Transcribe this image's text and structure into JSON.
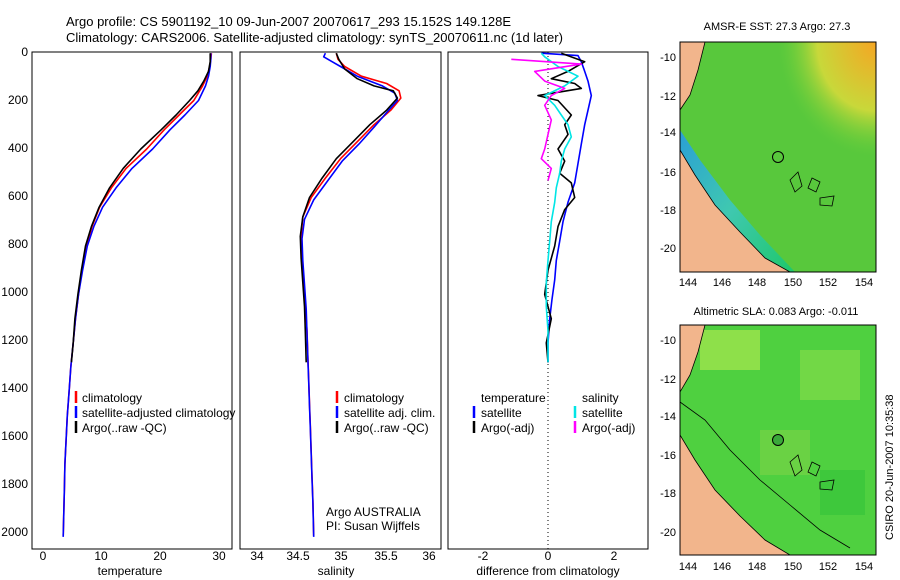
{
  "header": {
    "line1": "Argo profile: CS 5901192_10 09-Jun-2007 20070617_293 15.152S 149.128E",
    "line2": "Climatology: CARS2006. Satellite-adjusted climatology: synTS_20070611.nc (1d later)"
  },
  "side_text": "CSIRO 20-Jun-2007 10:35:38",
  "colors": {
    "climatology": "#ff0000",
    "satellite": "#0000ff",
    "argo": "#000000",
    "sal_satellite": "#00e5e5",
    "sal_argo": "#ff00ff",
    "land": "#f2b58c"
  },
  "maps": [
    {
      "title": "AMSR-E SST: 27.3 Argo: 27.3",
      "xticks": [
        "144",
        "146",
        "148",
        "150",
        "152",
        "154"
      ],
      "yticks": [
        "-10",
        "-12",
        "-14",
        "-16",
        "-18",
        "-20"
      ]
    },
    {
      "title": "Altimetric SLA: 0.083 Argo: -0.011",
      "xticks": [
        "144",
        "146",
        "148",
        "150",
        "152",
        "154"
      ],
      "yticks": [
        "-10",
        "-12",
        "-14",
        "-16",
        "-18",
        "-20"
      ]
    }
  ],
  "chart_data": [
    {
      "type": "line",
      "xlabel": "temperature",
      "ylabel": "",
      "xlim": [
        -3,
        31
      ],
      "ylim": [
        2050,
        0
      ],
      "xticks": [
        0,
        10,
        20,
        30
      ],
      "yticks": [
        0,
        200,
        400,
        600,
        800,
        1000,
        1200,
        1400,
        1600,
        1800,
        2000
      ],
      "legend": [
        "climatology",
        "satellite-adjusted climatology",
        "Argo(..raw -QC)"
      ],
      "series": [
        {
          "name": "climatology",
          "color": "#ff0000",
          "points": [
            [
              27.5,
              5
            ],
            [
              27.4,
              30
            ],
            [
              27.2,
              60
            ],
            [
              26.8,
              100
            ],
            [
              26.0,
              140
            ],
            [
              24.5,
              200
            ],
            [
              22.0,
              260
            ],
            [
              19.5,
              320
            ],
            [
              16.5,
              400
            ],
            [
              13.0,
              480
            ],
            [
              10.5,
              560
            ],
            [
              8.5,
              640
            ],
            [
              7.2,
              720
            ],
            [
              6.3,
              800
            ],
            [
              5.5,
              900
            ],
            [
              4.9,
              1000
            ],
            [
              4.4,
              1100
            ],
            [
              4.0,
              1200
            ],
            [
              3.6,
              1300
            ],
            [
              3.3,
              1400
            ],
            [
              3.0,
              1500
            ],
            [
              2.8,
              1600
            ],
            [
              2.6,
              1700
            ],
            [
              2.5,
              1800
            ],
            [
              2.4,
              1900
            ],
            [
              2.3,
              1995
            ]
          ]
        },
        {
          "name": "satellite-adjusted climatology",
          "color": "#0000ff",
          "points": [
            [
              27.4,
              5
            ],
            [
              27.4,
              30
            ],
            [
              27.3,
              60
            ],
            [
              27.0,
              100
            ],
            [
              26.5,
              140
            ],
            [
              25.3,
              200
            ],
            [
              23.0,
              260
            ],
            [
              20.5,
              320
            ],
            [
              17.5,
              400
            ],
            [
              14.0,
              480
            ],
            [
              11.3,
              560
            ],
            [
              9.0,
              640
            ],
            [
              7.5,
              720
            ],
            [
              6.4,
              800
            ],
            [
              5.6,
              900
            ],
            [
              4.9,
              1000
            ],
            [
              4.4,
              1100
            ],
            [
              4.0,
              1200
            ],
            [
              3.6,
              1300
            ],
            [
              3.3,
              1400
            ],
            [
              3.0,
              1500
            ],
            [
              2.8,
              1600
            ],
            [
              2.6,
              1700
            ],
            [
              2.5,
              1800
            ],
            [
              2.4,
              1900
            ],
            [
              2.3,
              2000
            ]
          ]
        },
        {
          "name": "Argo(..raw -QC)",
          "color": "#000000",
          "points": [
            [
              27.3,
              5
            ],
            [
              27.3,
              40
            ],
            [
              27.0,
              80
            ],
            [
              26.2,
              120
            ],
            [
              25.2,
              160
            ],
            [
              23.8,
              200
            ],
            [
              21.5,
              260
            ],
            [
              19.0,
              320
            ],
            [
              15.5,
              400
            ],
            [
              12.5,
              480
            ],
            [
              10.2,
              560
            ],
            [
              8.4,
              640
            ],
            [
              7.1,
              720
            ],
            [
              6.1,
              800
            ],
            [
              5.4,
              900
            ],
            [
              4.8,
              1000
            ],
            [
              4.3,
              1100
            ],
            [
              4.0,
              1200
            ],
            [
              3.7,
              1280
            ]
          ]
        }
      ]
    },
    {
      "type": "line",
      "xlabel": "salinity",
      "ylabel": "",
      "xlim": [
        33.8,
        36.2
      ],
      "ylim": [
        2050,
        0
      ],
      "xticks": [
        34,
        34.5,
        35,
        35.5,
        36
      ],
      "yticks": [
        0,
        200,
        400,
        600,
        800,
        1000,
        1200,
        1400,
        1600,
        1800,
        2000
      ],
      "legend": [
        "climatology",
        "satellite adj. clim.",
        "Argo(..raw -QC)"
      ],
      "annotation": [
        "Argo AUSTRALIA",
        "PI: Susan Wijffels"
      ],
      "series": [
        {
          "name": "climatology",
          "color": "#ff0000",
          "points": [
            [
              34.95,
              5
            ],
            [
              34.97,
              30
            ],
            [
              35.05,
              60
            ],
            [
              35.25,
              100
            ],
            [
              35.55,
              130
            ],
            [
              35.7,
              160
            ],
            [
              35.72,
              190
            ],
            [
              35.6,
              240
            ],
            [
              35.4,
              300
            ],
            [
              35.2,
              370
            ],
            [
              35.0,
              440
            ],
            [
              34.82,
              520
            ],
            [
              34.65,
              600
            ],
            [
              34.55,
              680
            ],
            [
              34.53,
              760
            ],
            [
              34.54,
              850
            ],
            [
              34.56,
              950
            ],
            [
              34.58,
              1050
            ],
            [
              34.6,
              1150
            ],
            [
              34.61,
              1250
            ],
            [
              34.62,
              1350
            ],
            [
              34.63,
              1450
            ],
            [
              34.64,
              1550
            ],
            [
              34.65,
              1650
            ],
            [
              34.66,
              1750
            ],
            [
              34.67,
              1850
            ],
            [
              34.68,
              1995
            ]
          ]
        },
        {
          "name": "satellite adj. clim.",
          "color": "#0000ff",
          "points": [
            [
              34.82,
              5
            ],
            [
              34.8,
              20
            ],
            [
              34.9,
              40
            ],
            [
              35.0,
              60
            ],
            [
              35.2,
              100
            ],
            [
              35.5,
              140
            ],
            [
              35.65,
              170
            ],
            [
              35.68,
              200
            ],
            [
              35.55,
              250
            ],
            [
              35.4,
              310
            ],
            [
              35.22,
              380
            ],
            [
              35.02,
              450
            ],
            [
              34.85,
              530
            ],
            [
              34.68,
              610
            ],
            [
              34.57,
              690
            ],
            [
              34.54,
              770
            ],
            [
              34.55,
              860
            ],
            [
              34.57,
              960
            ],
            [
              34.59,
              1060
            ],
            [
              34.6,
              1160
            ],
            [
              34.61,
              1260
            ],
            [
              34.62,
              1360
            ],
            [
              34.63,
              1460
            ],
            [
              34.64,
              1560
            ],
            [
              34.65,
              1660
            ],
            [
              34.66,
              1760
            ],
            [
              34.67,
              1860
            ],
            [
              34.68,
              2000
            ]
          ]
        },
        {
          "name": "Argo(..raw -QC)",
          "color": "#000000",
          "points": [
            [
              34.95,
              5
            ],
            [
              34.98,
              30
            ],
            [
              35.05,
              70
            ],
            [
              35.2,
              110
            ],
            [
              35.4,
              140
            ],
            [
              35.63,
              160
            ],
            [
              35.68,
              190
            ],
            [
              35.55,
              240
            ],
            [
              35.35,
              300
            ],
            [
              35.15,
              370
            ],
            [
              34.95,
              440
            ],
            [
              34.78,
              520
            ],
            [
              34.63,
              600
            ],
            [
              34.55,
              680
            ],
            [
              34.52,
              760
            ],
            [
              34.53,
              850
            ],
            [
              34.55,
              950
            ],
            [
              34.57,
              1050
            ],
            [
              34.58,
              1150
            ],
            [
              34.59,
              1280
            ]
          ]
        }
      ]
    },
    {
      "type": "line",
      "xlabel": "difference from climatology",
      "ylabel": "",
      "xlim": [
        -3,
        3
      ],
      "ylim": [
        2050,
        0
      ],
      "xticks": [
        -2,
        0,
        2
      ],
      "yticks": [
        0,
        200,
        400,
        600,
        800,
        1000,
        1200,
        1400,
        1600,
        1800,
        2000
      ],
      "legend_groups": [
        {
          "title": "temperature",
          "items": [
            "satellite",
            "Argo(-adj)"
          ]
        },
        {
          "title": "salinity",
          "items": [
            "satellite",
            "Argo(-adj)"
          ]
        }
      ],
      "series": [
        {
          "name": "temperature satellite",
          "color": "#0000ff",
          "points": [
            [
              -0.2,
              5
            ],
            [
              0.9,
              15
            ],
            [
              1.0,
              40
            ],
            [
              1.1,
              80
            ],
            [
              1.2,
              120
            ],
            [
              1.3,
              180
            ],
            [
              1.2,
              240
            ],
            [
              1.1,
              300
            ],
            [
              1.0,
              380
            ],
            [
              0.9,
              460
            ],
            [
              0.8,
              540
            ],
            [
              0.6,
              620
            ],
            [
              0.45,
              700
            ],
            [
              0.35,
              780
            ],
            [
              0.25,
              860
            ],
            [
              0.2,
              940
            ],
            [
              0.12,
              1020
            ],
            [
              0.05,
              1100
            ],
            [
              0.0,
              1200
            ],
            [
              0.0,
              1280
            ]
          ]
        },
        {
          "name": "temperature Argo(-adj)",
          "color": "#000000",
          "points": [
            [
              0.4,
              5
            ],
            [
              1.1,
              40
            ],
            [
              0.6,
              80
            ],
            [
              0.1,
              110
            ],
            [
              0.8,
              130
            ],
            [
              1.0,
              150
            ],
            [
              -0.3,
              180
            ],
            [
              0.3,
              200
            ],
            [
              0.7,
              260
            ],
            [
              0.5,
              300
            ],
            [
              0.6,
              340
            ],
            [
              0.3,
              400
            ],
            [
              0.5,
              450
            ],
            [
              0.35,
              500
            ],
            [
              0.7,
              540
            ],
            [
              0.8,
              600
            ],
            [
              0.5,
              650
            ],
            [
              0.3,
              720
            ],
            [
              0.2,
              800
            ],
            [
              0.0,
              900
            ],
            [
              -0.1,
              1000
            ],
            [
              0.1,
              1100
            ],
            [
              -0.05,
              1200
            ],
            [
              0.0,
              1280
            ]
          ]
        },
        {
          "name": "salinity satellite",
          "color": "#00e5e5",
          "points": [
            [
              -0.2,
              5
            ],
            [
              -0.1,
              20
            ],
            [
              0.3,
              60
            ],
            [
              0.9,
              100
            ],
            [
              0.5,
              140
            ],
            [
              -0.1,
              180
            ],
            [
              0.2,
              220
            ],
            [
              0.4,
              260
            ],
            [
              0.6,
              300
            ],
            [
              0.7,
              350
            ],
            [
              0.5,
              400
            ],
            [
              0.4,
              450
            ],
            [
              0.35,
              500
            ],
            [
              0.25,
              560
            ],
            [
              0.2,
              620
            ],
            [
              0.1,
              700
            ],
            [
              0.05,
              780
            ],
            [
              0.0,
              860
            ],
            [
              -0.05,
              950
            ],
            [
              -0.05,
              1050
            ],
            [
              0.0,
              1150
            ],
            [
              0.0,
              1280
            ]
          ]
        },
        {
          "name": "salinity Argo(-adj)",
          "color": "#ff00ff",
          "points": [
            [
              -1.1,
              30
            ],
            [
              1.0,
              50
            ],
            [
              -0.4,
              80
            ],
            [
              -0.1,
              120
            ],
            [
              0.5,
              150
            ],
            [
              0.1,
              180
            ],
            [
              -0.1,
              220
            ],
            [
              0.1,
              280
            ],
            [
              0.0,
              340
            ],
            [
              -0.1,
              400
            ],
            [
              -0.2,
              440
            ],
            [
              0.1,
              480
            ],
            [
              0.0,
              530
            ]
          ]
        }
      ]
    }
  ]
}
